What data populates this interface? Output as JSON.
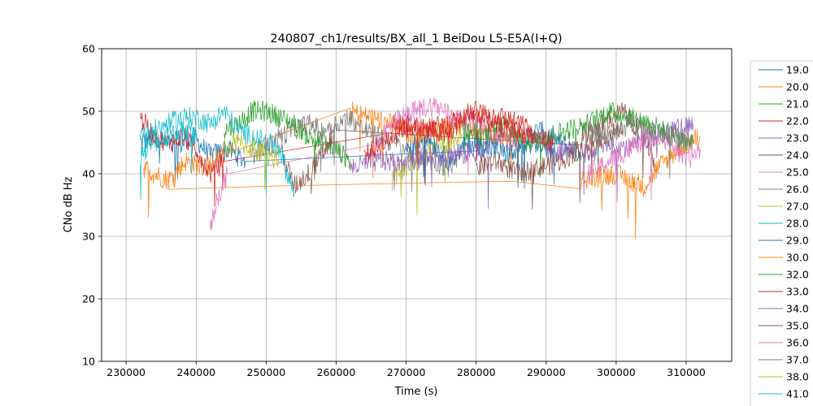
{
  "chart_data": {
    "type": "line",
    "title": "240807_ch1/results/BX_all_1 BeiDou L5-E5A(I+Q)",
    "xlabel": "Time (s)",
    "ylabel": "CNo dB Hz",
    "xlim": [
      226500,
      316500
    ],
    "ylim": [
      10,
      60
    ],
    "xticks": [
      230000,
      240000,
      250000,
      260000,
      270000,
      280000,
      290000,
      300000,
      310000
    ],
    "yticks": [
      10,
      20,
      30,
      40,
      50,
      60
    ],
    "grid": true,
    "legend_position": "right, outside plot (clipped at bottom)",
    "series": [
      {
        "name": "19.0",
        "color": "#1f77b4",
        "x": [
          232000,
          234500,
          237000,
          239500,
          242000,
          244500,
          247000,
          280000,
          283000,
          286000,
          289000,
          292000,
          295000
        ],
        "y": [
          45,
          46,
          44,
          46,
          43,
          44,
          42,
          44,
          46,
          45,
          47,
          45,
          43
        ]
      },
      {
        "name": "20.0",
        "color": "#ff7f0e",
        "x": [
          232500,
          234000,
          236000,
          238500,
          241000,
          244000,
          262000,
          265000,
          268000,
          271000,
          274000,
          277000,
          280000,
          283000,
          286000
        ],
        "y": [
          41,
          40,
          39,
          42,
          41,
          43,
          50,
          49,
          48,
          46,
          47,
          48,
          47,
          46,
          45
        ]
      },
      {
        "name": "21.0",
        "color": "#2ca02c",
        "x": [
          244000,
          246000,
          248000,
          250000,
          252000,
          254000,
          256000,
          258000,
          260000,
          262000
        ],
        "y": [
          47,
          48,
          50,
          50,
          49,
          48,
          46,
          45,
          44,
          42
        ]
      },
      {
        "name": "22.0",
        "color": "#d62728",
        "x": [
          232000,
          234000,
          236000,
          238000,
          240000,
          242000,
          244000,
          268000,
          272000,
          276000,
          280000,
          284000,
          288000
        ],
        "y": [
          49,
          46,
          45,
          46,
          44,
          40,
          42,
          48,
          47,
          48,
          50,
          49,
          47
        ]
      },
      {
        "name": "23.0",
        "color": "#9467bd",
        "x": [
          290000,
          293000,
          296000,
          299000,
          302000,
          305000,
          308000,
          311000
        ],
        "y": [
          43,
          44,
          43,
          45,
          44,
          46,
          47,
          48
        ]
      },
      {
        "name": "24.0",
        "color": "#8c564b",
        "x": [
          252000,
          254000,
          256000,
          258000,
          260000,
          295000,
          298000,
          301000,
          304000,
          306000
        ],
        "y": [
          44,
          38,
          40,
          43,
          47,
          46,
          48,
          50,
          46,
          40
        ]
      },
      {
        "name": "25.0",
        "color": "#e377c2",
        "x": [
          242000,
          243000,
          244500,
          265000,
          268000,
          271000,
          274000,
          277000,
          280000,
          283000,
          286000
        ],
        "y": [
          31,
          36,
          40,
          44,
          48,
          50,
          51,
          49,
          48,
          46,
          45
        ]
      },
      {
        "name": "26.0",
        "color": "#7f7f7f",
        "x": [
          248000,
          250000,
          252000,
          254000,
          256000,
          258000,
          260000,
          262000,
          264000,
          266000,
          268000,
          270000,
          272000,
          274000,
          276000,
          278000
        ],
        "y": [
          43,
          44,
          46,
          47,
          48,
          47,
          48,
          49,
          47,
          46,
          45,
          44,
          43,
          42,
          41,
          43
        ]
      },
      {
        "name": "27.0",
        "color": "#bcbd22",
        "x": [
          268000,
          270000,
          272000,
          274000,
          276000,
          278000
        ],
        "y": [
          39,
          41,
          43,
          44,
          45,
          46
        ]
      },
      {
        "name": "28.0",
        "color": "#17becf",
        "x": [
          232000,
          234000,
          236000,
          238000,
          240000,
          242000,
          244000,
          246000,
          248000,
          250000,
          252000,
          253000,
          254000
        ],
        "y": [
          46,
          47,
          48,
          49,
          49,
          48,
          50,
          47,
          46,
          45,
          44,
          40,
          37
        ]
      },
      {
        "name": "29.0",
        "color": "#1f77b4",
        "x": [
          270000,
          273000,
          276000,
          279000,
          282000,
          285000,
          288000,
          291000
        ],
        "y": [
          44,
          46,
          42,
          45,
          44,
          43,
          45,
          44
        ]
      },
      {
        "name": "30.0",
        "color": "#ff7f0e",
        "x": [
          236000,
          250000,
          262000,
          275000,
          285000,
          295000,
          300000,
          304000,
          306000,
          309000,
          312000
        ],
        "y": [
          37.5,
          38,
          38.3,
          38.6,
          38.8,
          39,
          40,
          38,
          41,
          44,
          46
        ]
      },
      {
        "name": "32.0",
        "color": "#2ca02c",
        "x": [
          278000,
          281000,
          284000,
          287000,
          290000,
          293000,
          296000,
          299000,
          302000,
          305000,
          308000,
          311000
        ],
        "y": [
          47,
          46,
          48,
          45,
          46,
          47,
          48,
          50,
          49,
          48,
          46,
          45
        ]
      },
      {
        "name": "33.0",
        "color": "#d62728",
        "x": [
          264000,
          267000,
          270000,
          273000,
          276000,
          279000,
          282000,
          285000,
          288000,
          291000
        ],
        "y": [
          43,
          45,
          48,
          47,
          46,
          50,
          48,
          47,
          46,
          45
        ]
      },
      {
        "name": "34.0",
        "color": "#9467bd",
        "x": [
          262000,
          266000,
          270000,
          274000,
          278000,
          282000
        ],
        "y": [
          41,
          42,
          42,
          43,
          43,
          44
        ]
      },
      {
        "name": "35.0",
        "color": "#8c564b",
        "x": [
          280000,
          283000,
          286000,
          289000,
          292000,
          295000,
          298000,
          301000
        ],
        "y": [
          41,
          42,
          40,
          41,
          42,
          44,
          46,
          47
        ]
      },
      {
        "name": "36.0",
        "color": "#e377c2",
        "x": [
          296000,
          299000,
          302000,
          305000,
          308000,
          310000,
          312000
        ],
        "y": [
          40,
          42,
          44,
          46,
          45,
          42,
          44
        ]
      },
      {
        "name": "37.0",
        "color": "#7f7f7f",
        "x": [
          296000,
          299000,
          302000,
          305000,
          308000,
          311000
        ],
        "y": [
          47,
          46,
          48,
          47,
          46,
          45
        ]
      },
      {
        "name": "38.0",
        "color": "#bcbd22",
        "x": [
          244000,
          246000,
          248000,
          250000,
          252000
        ],
        "y": [
          44,
          45,
          44,
          43,
          42
        ]
      },
      {
        "name": "41.0",
        "color": "#17becf",
        "x": [
          232000,
          234000,
          236000,
          238000,
          240000
        ],
        "y": [
          43,
          45,
          46,
          47,
          46
        ]
      }
    ]
  }
}
